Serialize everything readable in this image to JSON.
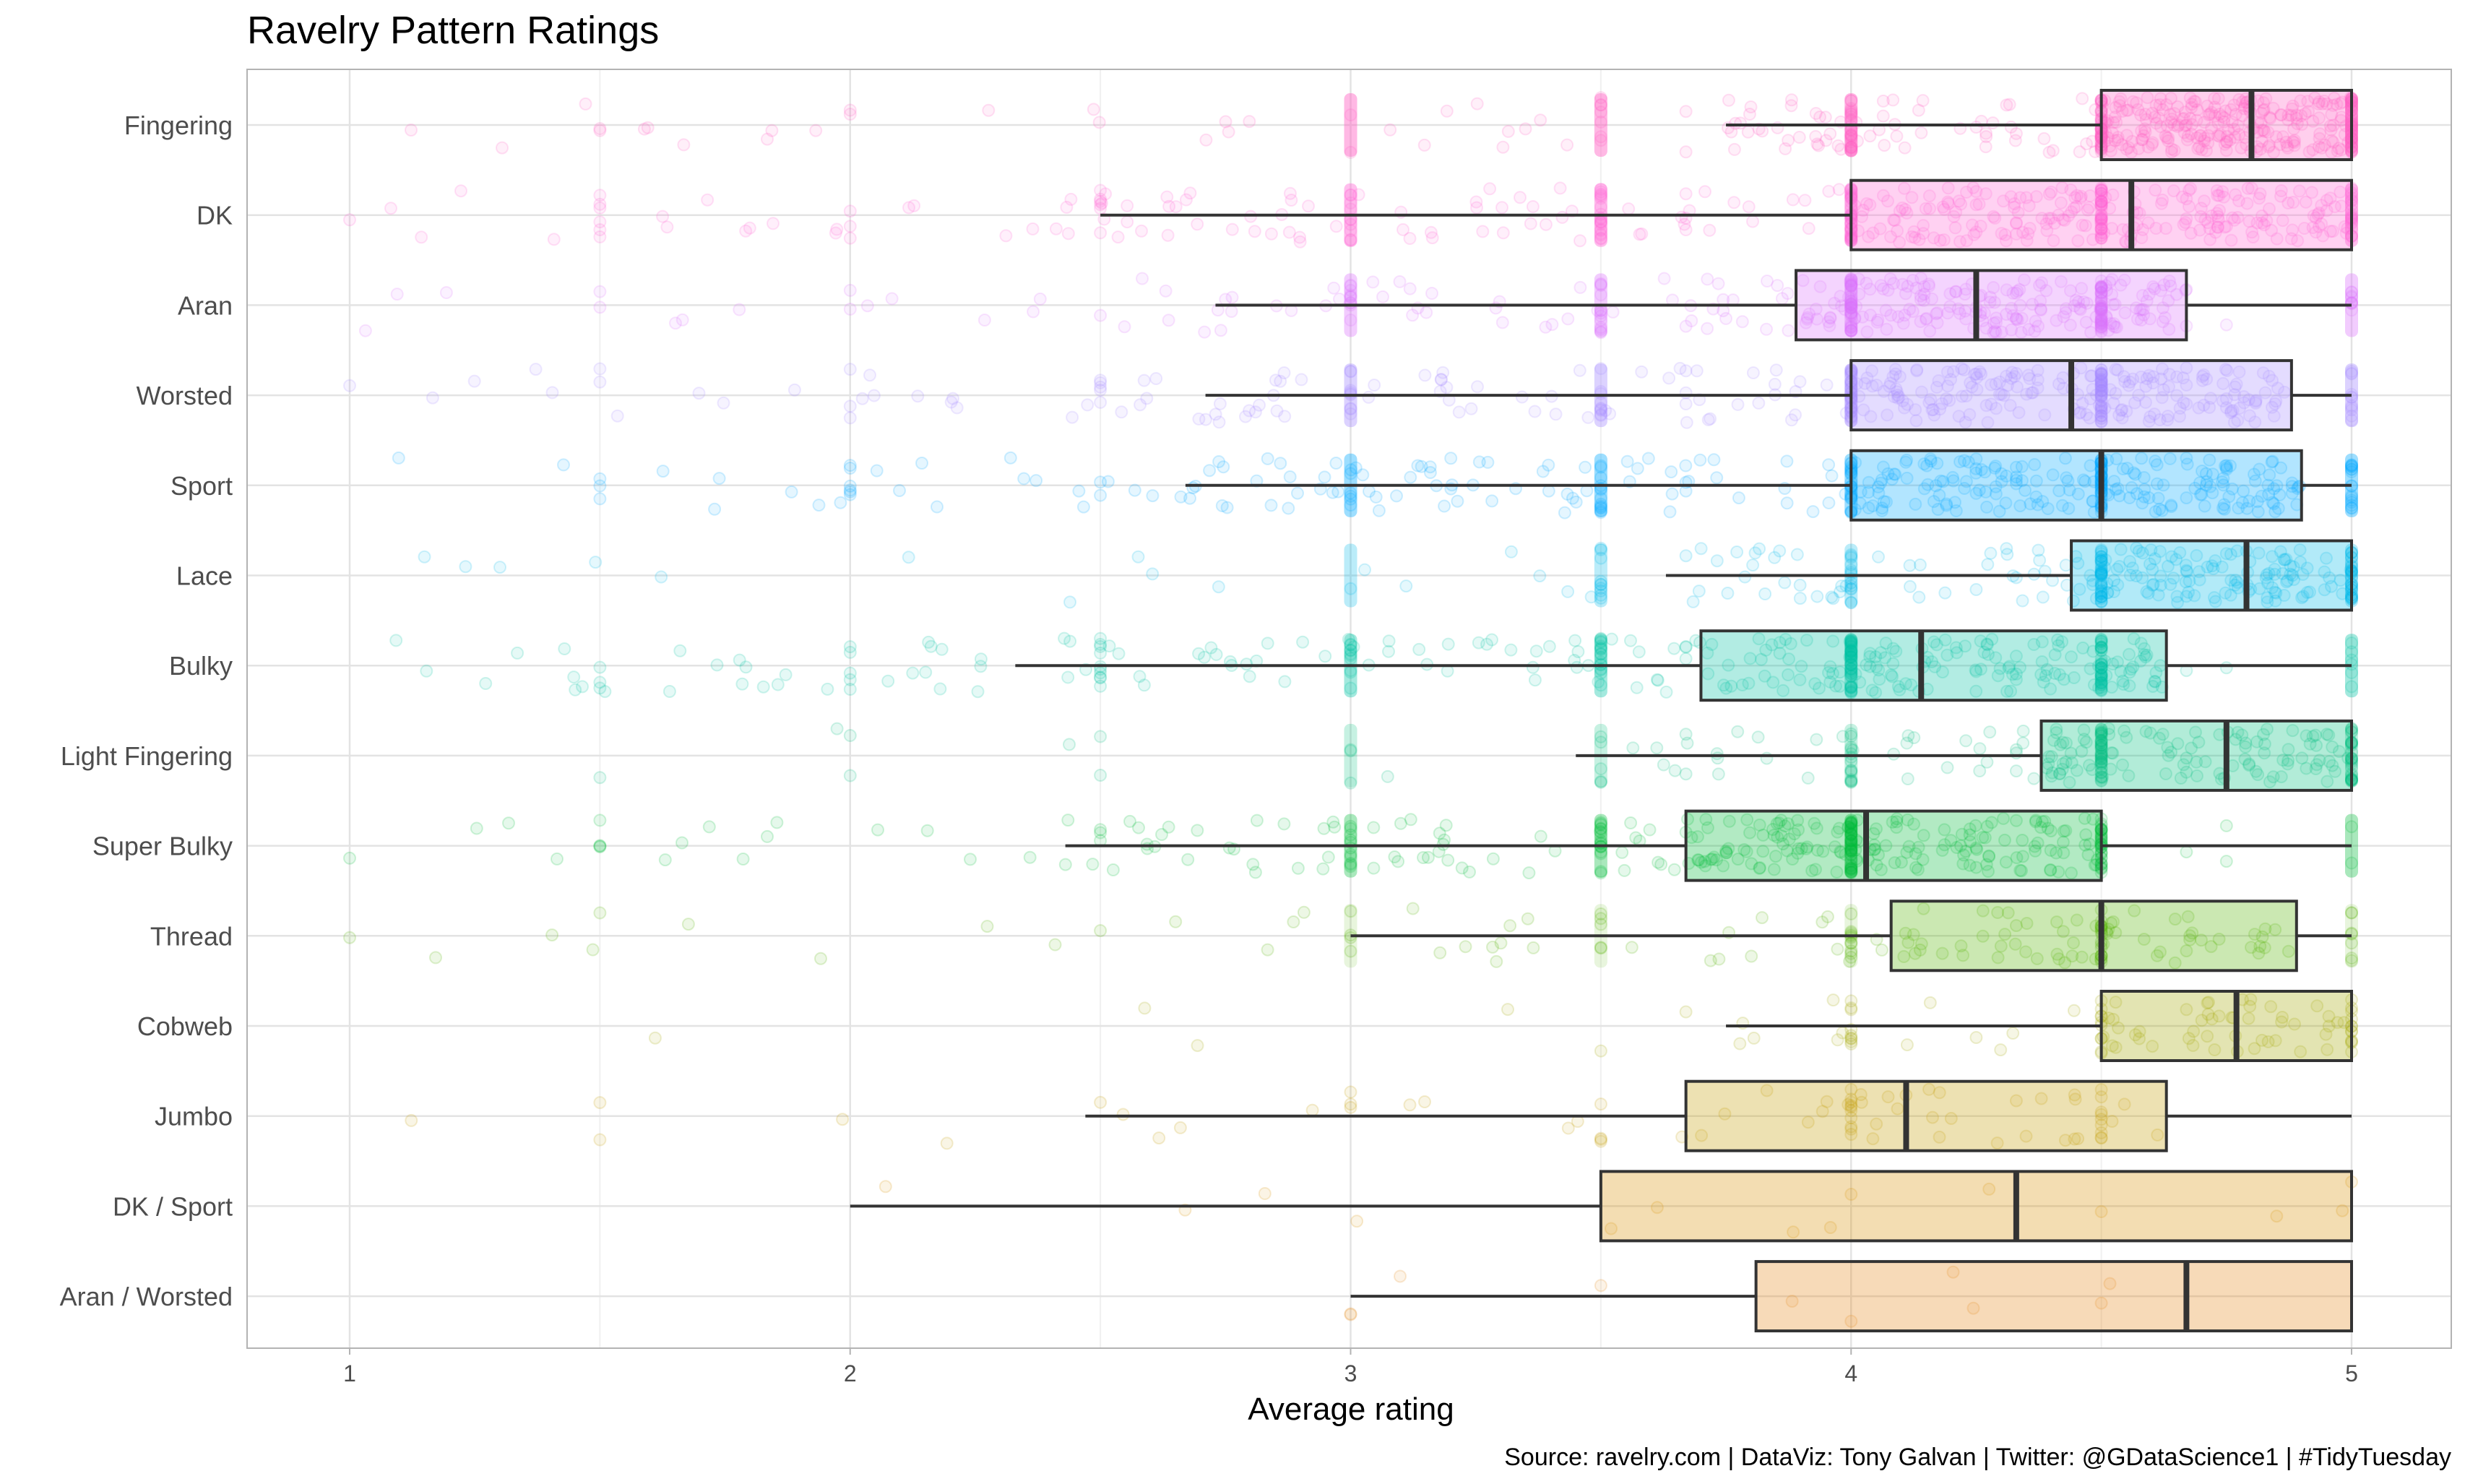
{
  "chart_data": {
    "type": "boxplot",
    "title": "Ravelry Pattern Ratings",
    "xlabel": "Average rating",
    "ylabel": "",
    "xlim": [
      0.8,
      5.2
    ],
    "x_ticks": [
      1,
      2,
      3,
      4,
      5
    ],
    "caption": "Source: ravelry.com  |  DataViz: Tony Galvan  |  Twitter: @GDataScience1  |  #TidyTuesday",
    "grid": true,
    "legend": "none",
    "categories": [
      "Fingering",
      "DK",
      "Aran",
      "Worsted",
      "Sport",
      "Lace",
      "Bulky",
      "Light Fingering",
      "Super Bulky",
      "Thread",
      "Cobweb",
      "Jumbo",
      "DK / Sport",
      "Aran / Worsted"
    ],
    "series": [
      {
        "category": "Fingering",
        "color": "#FF61C3",
        "whisker_low": 3.75,
        "q1": 4.5,
        "median": 4.8,
        "q3": 5.0,
        "whisker_high": 5.0,
        "density": 1.0
      },
      {
        "category": "DK",
        "color": "#FF66D4",
        "whisker_low": 2.5,
        "q1": 4.0,
        "median": 4.56,
        "q3": 5.0,
        "whisker_high": 5.0,
        "density": 0.95
      },
      {
        "category": "Aran",
        "color": "#DB72FB",
        "whisker_low": 2.73,
        "q1": 3.89,
        "median": 4.25,
        "q3": 4.67,
        "whisker_high": 5.0,
        "density": 0.8
      },
      {
        "category": "Worsted",
        "color": "#A58AFF",
        "whisker_low": 2.71,
        "q1": 4.0,
        "median": 4.44,
        "q3": 4.88,
        "whisker_high": 5.0,
        "density": 0.85
      },
      {
        "category": "Sport",
        "color": "#00A9FF",
        "whisker_low": 2.67,
        "q1": 4.0,
        "median": 4.5,
        "q3": 4.9,
        "whisker_high": 5.0,
        "density": 0.85
      },
      {
        "category": "Lace",
        "color": "#00B8E7",
        "whisker_low": 3.63,
        "q1": 4.44,
        "median": 4.79,
        "q3": 5.0,
        "whisker_high": 5.0,
        "density": 0.6
      },
      {
        "category": "Bulky",
        "color": "#00C1A3",
        "whisker_low": 2.33,
        "q1": 3.7,
        "median": 4.14,
        "q3": 4.63,
        "whisker_high": 5.0,
        "density": 0.8
      },
      {
        "category": "Light Fingering",
        "color": "#00BF7D",
        "whisker_low": 3.45,
        "q1": 4.38,
        "median": 4.75,
        "q3": 5.0,
        "whisker_high": 5.0,
        "density": 0.5
      },
      {
        "category": "Super Bulky",
        "color": "#00BA38",
        "whisker_low": 2.43,
        "q1": 3.67,
        "median": 4.03,
        "q3": 4.5,
        "whisker_high": 5.0,
        "density": 0.75
      },
      {
        "category": "Thread",
        "color": "#53B400",
        "whisker_low": 3.0,
        "q1": 4.08,
        "median": 4.5,
        "q3": 4.89,
        "whisker_high": 5.0,
        "density": 0.3
      },
      {
        "category": "Cobweb",
        "color": "#A3A500",
        "whisker_low": 3.75,
        "q1": 4.5,
        "median": 4.77,
        "q3": 5.0,
        "whisker_high": 5.0,
        "density": 0.2
      },
      {
        "category": "Jumbo",
        "color": "#C49A00",
        "whisker_low": 2.47,
        "q1": 3.67,
        "median": 4.11,
        "q3": 4.63,
        "whisker_high": 5.0,
        "density": 0.15
      },
      {
        "category": "DK / Sport",
        "color": "#D89000",
        "whisker_low": 2.0,
        "q1": 3.5,
        "median": 4.33,
        "q3": 5.0,
        "whisker_high": 5.0,
        "density": 0.03
      },
      {
        "category": "Aran / Worsted",
        "color": "#E68613",
        "whisker_low": 3.0,
        "q1": 3.81,
        "median": 4.67,
        "q3": 5.0,
        "whisker_high": 5.0,
        "density": 0.02
      }
    ]
  }
}
